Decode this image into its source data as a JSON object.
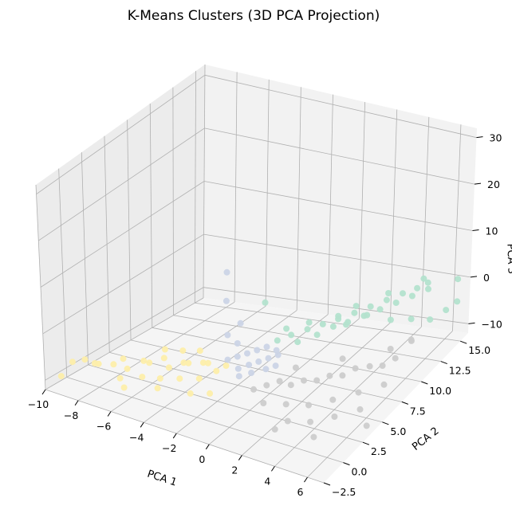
{
  "chart_data": {
    "type": "scatter",
    "projection": "3d",
    "title": "K-Means Clusters (3D PCA Projection)",
    "xlabel": "PCA 1",
    "ylabel": "PCA 2",
    "zlabel": "PCA 3",
    "xlim": [
      -10,
      7
    ],
    "ylim": [
      -2.5,
      16
    ],
    "zlim": [
      -12,
      32
    ],
    "x_ticks": [
      "−10",
      "−8",
      "−6",
      "−4",
      "−2",
      "0",
      "2",
      "4",
      "6"
    ],
    "y_ticks": [
      "−2.5",
      "0.0",
      "2.5",
      "5.0",
      "7.5",
      "10.0",
      "12.5",
      "15.0"
    ],
    "z_ticks": [
      "−10",
      "0",
      "10",
      "20",
      "30"
    ],
    "grid": true,
    "legend": "none",
    "colors": {
      "cluster_yellow": "#fdeeaa",
      "cluster_blue": "#cbd4e6",
      "cluster_green": "#b3e2cd",
      "cluster_gray": "#cccccc",
      "pane_left": "#ececec",
      "pane_back": "#f2f2f2",
      "pane_floor": "#f5f5f5",
      "grid": "#b0b0b0"
    },
    "series": [
      {
        "cluster": "yellow",
        "color": "#fdeeaa",
        "points": [
          [
            -9.5,
            -0.2,
            -8
          ],
          [
            -9.0,
            0.3,
            -7.5
          ],
          [
            -8.5,
            0.5,
            -8
          ],
          [
            -8.0,
            0.0,
            -7
          ],
          [
            -7.5,
            0.8,
            -7.5
          ],
          [
            -7.0,
            1.0,
            -6
          ],
          [
            -6.5,
            0.5,
            -7
          ],
          [
            -6.0,
            1.5,
            -6
          ],
          [
            -5.5,
            1.2,
            -5.5
          ],
          [
            -5.0,
            2.0,
            -5
          ],
          [
            -4.5,
            1.6,
            -6
          ],
          [
            -4.0,
            2.4,
            -5.5
          ],
          [
            -3.5,
            2.0,
            -4.5
          ],
          [
            -3.0,
            2.8,
            -5
          ],
          [
            -2.5,
            2.4,
            -4
          ],
          [
            -6.8,
            0.2,
            -9
          ],
          [
            -5.8,
            0.9,
            -8.5
          ],
          [
            -4.8,
            1.1,
            -8
          ],
          [
            -3.8,
            1.5,
            -7.5
          ],
          [
            -2.8,
            1.9,
            -7
          ],
          [
            -4.2,
            2.7,
            -3.5
          ],
          [
            -3.3,
            3.0,
            -3
          ],
          [
            -2.2,
            2.8,
            -6
          ],
          [
            -1.8,
            3.2,
            -5
          ],
          [
            -5.2,
            2.5,
            -4
          ],
          [
            -9.8,
            -1.0,
            -10.5
          ],
          [
            -2.0,
            1.6,
            -9
          ],
          [
            -3.0,
            1.2,
            -9.5
          ],
          [
            -6.2,
            -0.5,
            -9.5
          ],
          [
            -4.6,
            0.4,
            -9
          ]
        ]
      },
      {
        "cluster": "blue",
        "color": "#cbd4e6",
        "points": [
          [
            -1.8,
            3.4,
            -4
          ],
          [
            -1.4,
            3.8,
            -3.5
          ],
          [
            -1.0,
            4.2,
            -3
          ],
          [
            -0.6,
            4.6,
            -2.5
          ],
          [
            -0.2,
            5.0,
            -2
          ],
          [
            0.2,
            5.4,
            -3
          ],
          [
            -1.2,
            3.5,
            -5.5
          ],
          [
            -0.8,
            4.0,
            -5
          ],
          [
            -0.4,
            4.4,
            -4.5
          ],
          [
            0.0,
            4.8,
            -4
          ],
          [
            0.4,
            5.2,
            -3.5
          ],
          [
            -1.0,
            3.2,
            -6.5
          ],
          [
            -0.5,
            3.7,
            -6
          ],
          [
            0.1,
            4.3,
            -5.5
          ],
          [
            0.5,
            4.7,
            -5
          ],
          [
            -1.6,
            3.0,
            16
          ],
          [
            -1.8,
            3.3,
            9
          ],
          [
            -1.2,
            3.8,
            4
          ],
          [
            -1.9,
            3.6,
            1
          ],
          [
            -1.5,
            4.0,
            -1
          ]
        ]
      },
      {
        "cluster": "green",
        "color": "#b3e2cd",
        "points": [
          [
            0.2,
            5.5,
            -1
          ],
          [
            0.8,
            6.0,
            0
          ],
          [
            1.4,
            6.8,
            0.5
          ],
          [
            2.0,
            7.5,
            1
          ],
          [
            2.6,
            8.2,
            1.5
          ],
          [
            3.2,
            9.0,
            2
          ],
          [
            3.8,
            9.8,
            2.5
          ],
          [
            4.4,
            10.6,
            3
          ],
          [
            5.0,
            11.4,
            3.5
          ],
          [
            5.6,
            12.0,
            4
          ],
          [
            1.0,
            6.4,
            -2
          ],
          [
            1.8,
            7.2,
            -1
          ],
          [
            2.4,
            8.0,
            0
          ],
          [
            3.0,
            8.6,
            0.5
          ],
          [
            3.6,
            9.4,
            1
          ],
          [
            4.2,
            10.2,
            1.5
          ],
          [
            4.8,
            11.0,
            2
          ],
          [
            5.4,
            11.8,
            2.5
          ],
          [
            6.0,
            12.6,
            3
          ],
          [
            0.6,
            5.8,
            1.5
          ],
          [
            1.6,
            6.6,
            2.5
          ],
          [
            2.8,
            7.8,
            3
          ],
          [
            3.4,
            8.8,
            4
          ],
          [
            4.6,
            10.4,
            5
          ],
          [
            5.8,
            12.4,
            5.5
          ],
          [
            4.0,
            12.0,
            -4
          ],
          [
            4.8,
            13.0,
            -5
          ],
          [
            5.6,
            13.8,
            -6
          ],
          [
            6.2,
            14.6,
            -5
          ],
          [
            6.6,
            15.2,
            -4
          ],
          [
            3.0,
            11.0,
            -2
          ],
          [
            2.2,
            10.0,
            -3
          ],
          [
            5.2,
            14.2,
            1
          ],
          [
            6.4,
            15.6,
            0
          ],
          [
            -0.2,
            4.8,
            8
          ]
        ]
      },
      {
        "cluster": "gray",
        "color": "#cccccc",
        "points": [
          [
            0.5,
            2.0,
            -6
          ],
          [
            1.0,
            2.6,
            -5.5
          ],
          [
            1.5,
            3.2,
            -5
          ],
          [
            2.0,
            3.6,
            -6
          ],
          [
            2.5,
            4.2,
            -5.5
          ],
          [
            3.0,
            4.8,
            -6
          ],
          [
            3.5,
            5.4,
            -5.5
          ],
          [
            4.0,
            6.0,
            -6
          ],
          [
            4.5,
            6.6,
            -5
          ],
          [
            5.0,
            7.4,
            -5.5
          ],
          [
            5.5,
            8.0,
            -6
          ],
          [
            6.0,
            8.6,
            -5
          ],
          [
            1.2,
            1.8,
            -8
          ],
          [
            2.2,
            2.6,
            -8.5
          ],
          [
            3.2,
            3.4,
            -9
          ],
          [
            4.2,
            4.4,
            -8.5
          ],
          [
            5.2,
            5.6,
            -8
          ],
          [
            6.2,
            6.8,
            -7.5
          ],
          [
            2.8,
            1.6,
            -10
          ],
          [
            3.8,
            2.4,
            -10.5
          ],
          [
            4.8,
            3.4,
            -10
          ],
          [
            5.8,
            4.6,
            -9.5
          ],
          [
            1.8,
            4.6,
            -4
          ],
          [
            3.6,
            6.8,
            -4
          ],
          [
            5.4,
            9.2,
            -4.5
          ],
          [
            6.4,
            9.8,
            -3
          ],
          [
            6.0,
            10.6,
            -4.5
          ],
          [
            4.6,
            1.2,
            -11
          ],
          [
            6.6,
            3.8,
            -11
          ],
          [
            2.4,
            0.8,
            -11
          ]
        ]
      }
    ]
  }
}
